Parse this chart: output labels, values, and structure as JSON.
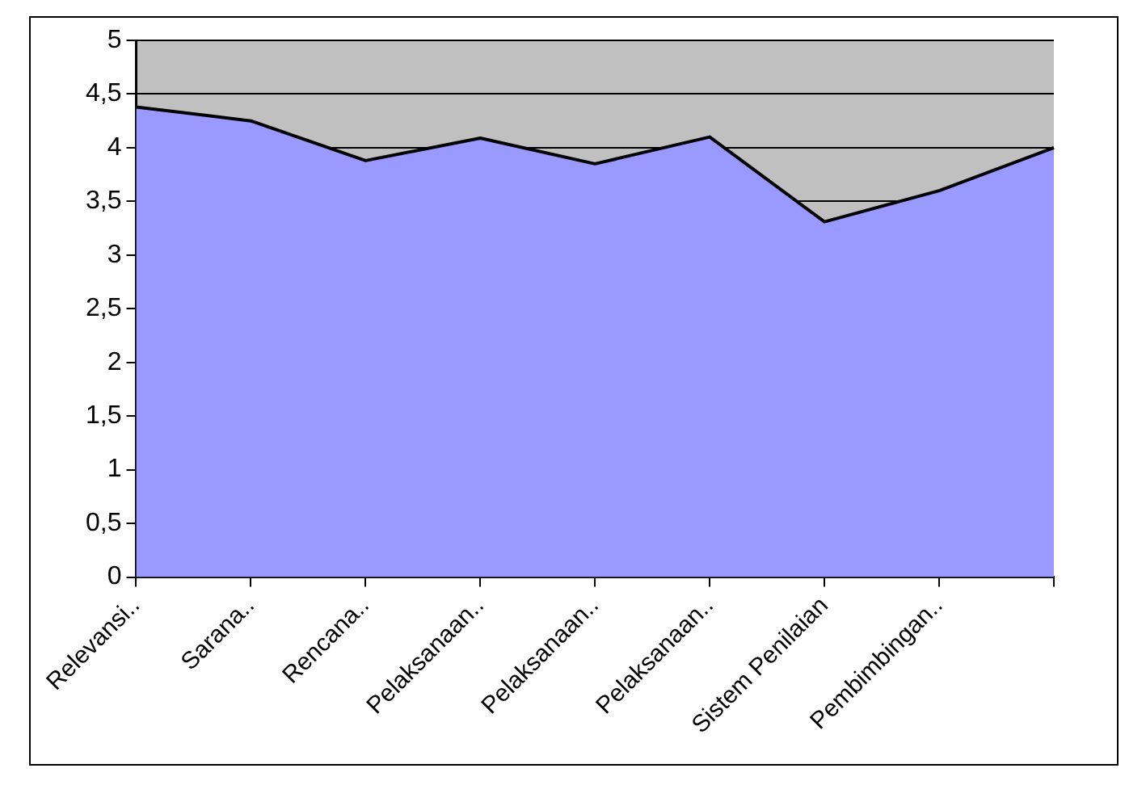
{
  "chart_data": {
    "type": "area",
    "categories": [
      "Relevansi..",
      "Sarana..",
      "Rencana..",
      "Pelaksanaan..",
      "Pelaksanaan..",
      "Pelaksanaan..",
      "Sistem Penilaian",
      "Pembimbingan..",
      null
    ],
    "series": [
      {
        "color": "#9999ff",
        "values": [
          4.38,
          4.25,
          3.88,
          4.09,
          3.85,
          4.1,
          3.31,
          3.6,
          4.0
        ]
      }
    ],
    "ylim": [
      0,
      5
    ],
    "yticks": [
      {
        "value": 0,
        "label": "0"
      },
      {
        "value": 0.5,
        "label": "0,5"
      },
      {
        "value": 1,
        "label": "1"
      },
      {
        "value": 1.5,
        "label": "1,5"
      },
      {
        "value": 2,
        "label": "2"
      },
      {
        "value": 2.5,
        "label": "2,5"
      },
      {
        "value": 3,
        "label": "3"
      },
      {
        "value": 3.5,
        "label": "3,5"
      },
      {
        "value": 4,
        "label": "4"
      },
      {
        "value": 4.5,
        "label": "4,5"
      },
      {
        "value": 5,
        "label": "5"
      }
    ],
    "grid": "y",
    "legend": false
  }
}
